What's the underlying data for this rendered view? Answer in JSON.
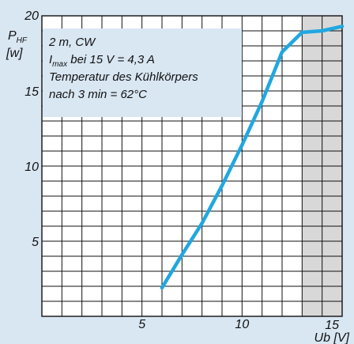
{
  "chart_data": {
    "type": "line",
    "title": "",
    "ylabel_main": "P",
    "ylabel_sub": "HF",
    "yunit": "[w]",
    "xlabel": "Ub [V]",
    "xlim": [
      0,
      15
    ],
    "ylim": [
      0,
      20
    ],
    "x_ticks": [
      {
        "value": 5,
        "label": "5"
      },
      {
        "value": 10,
        "label": "10"
      },
      {
        "value": 15,
        "label": "15"
      }
    ],
    "y_ticks": [
      {
        "value": 5,
        "label": "5"
      },
      {
        "value": 10,
        "label": "10"
      },
      {
        "value": 15,
        "label": "15"
      },
      {
        "value": 20,
        "label": "20"
      }
    ],
    "x_minor_step": 1,
    "y_minor_step": 1,
    "grid": true,
    "shaded_region_x": [
      13,
      15
    ],
    "colors": {
      "background": "#d9e7f3",
      "plot": "#ffffff",
      "shade": "#d8d8d8",
      "grid": "#111111",
      "line": "#21a7e0",
      "annotation_bg": "#d9e7f3"
    },
    "annotation_lines": [
      {
        "main": "2 m, CW"
      },
      {
        "main": "I",
        "sub": "max",
        "rest": " bei 15 V = 4,3 A"
      },
      {
        "main": "Temperatur des Kühlkörpers"
      },
      {
        "main": "nach 3 min = 62°C"
      }
    ],
    "series": [
      {
        "x": [
          6,
          7,
          8,
          9,
          10,
          11,
          12,
          13,
          14,
          15
        ],
        "y": [
          1.9,
          4.1,
          6.2,
          8.7,
          11.4,
          14.3,
          17.6,
          18.9,
          19.0,
          19.3
        ]
      }
    ]
  }
}
